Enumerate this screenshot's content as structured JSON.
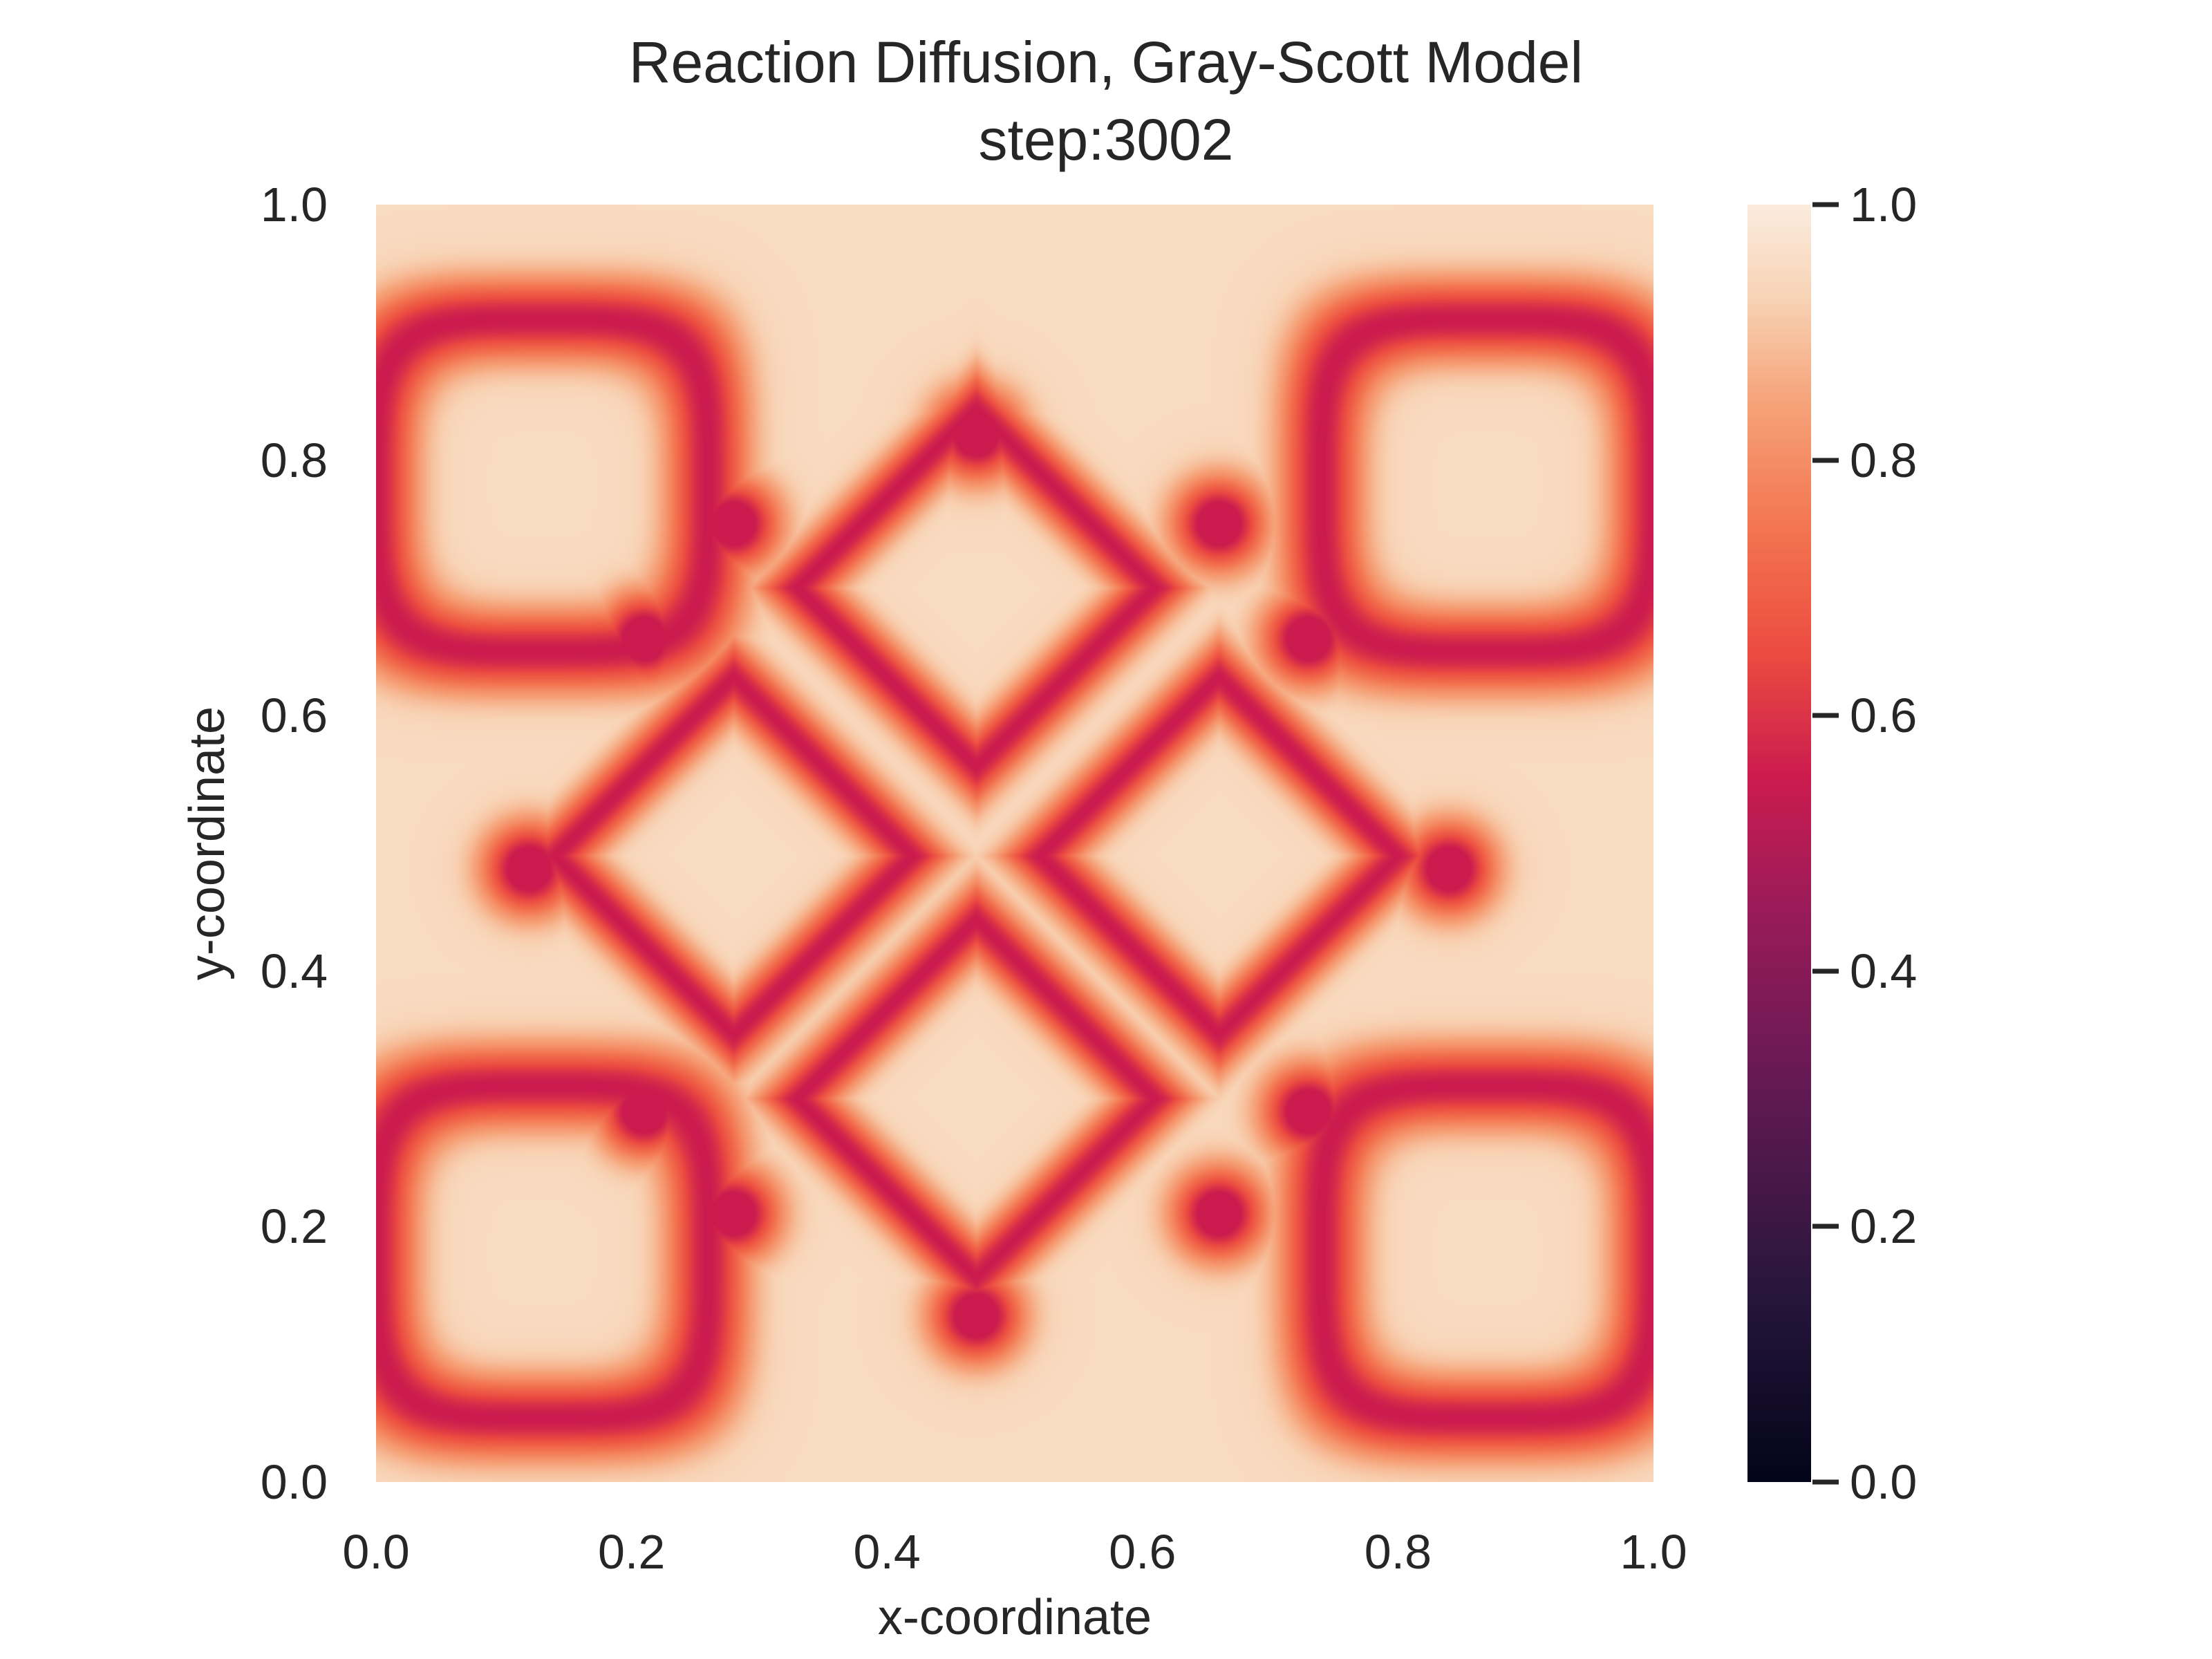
{
  "chart_data": {
    "type": "heatmap",
    "title": "Reaction Diffusion, Gray-Scott Model",
    "subtitle": "step:3002",
    "xlabel": "x-coordinate",
    "ylabel": "y-coordinate",
    "xlim": [
      0.0,
      1.0
    ],
    "ylim": [
      0.0,
      1.0
    ],
    "x_ticks": [
      "0.0",
      "0.2",
      "0.4",
      "0.6",
      "0.8",
      "1.0"
    ],
    "y_ticks": [
      "0.0",
      "0.2",
      "0.4",
      "0.6",
      "0.8",
      "1.0"
    ],
    "grid": false,
    "colorbar": {
      "range": [
        0.0,
        1.0
      ],
      "ticks": [
        "0.0",
        "0.2",
        "0.4",
        "0.6",
        "0.8",
        "1.0"
      ],
      "colormap": "rocket"
    },
    "field": {
      "background_value": 0.95,
      "ring_value": 0.55,
      "node_value": 0.5,
      "diamond_rings": [
        {
          "x": 0.47,
          "y": 0.7,
          "r": 0.14
        },
        {
          "x": 0.47,
          "y": 0.3,
          "r": 0.14
        },
        {
          "x": 0.28,
          "y": 0.49,
          "r": 0.14
        },
        {
          "x": 0.66,
          "y": 0.49,
          "r": 0.14
        }
      ],
      "nodes": [
        {
          "x": 0.47,
          "y": 0.82
        },
        {
          "x": 0.47,
          "y": 0.13
        },
        {
          "x": 0.12,
          "y": 0.48
        },
        {
          "x": 0.84,
          "y": 0.48
        },
        {
          "x": 0.28,
          "y": 0.75
        },
        {
          "x": 0.66,
          "y": 0.75
        },
        {
          "x": 0.28,
          "y": 0.21
        },
        {
          "x": 0.66,
          "y": 0.21
        },
        {
          "x": 0.21,
          "y": 0.66
        },
        {
          "x": 0.73,
          "y": 0.66
        },
        {
          "x": 0.21,
          "y": 0.29
        },
        {
          "x": 0.73,
          "y": 0.29
        }
      ],
      "corner_loops": [
        {
          "x": 0.13,
          "y": 0.78,
          "r": 0.13
        },
        {
          "x": 0.87,
          "y": 0.78,
          "r": 0.13
        },
        {
          "x": 0.13,
          "y": 0.18,
          "r": 0.13
        },
        {
          "x": 0.87,
          "y": 0.18,
          "r": 0.13
        }
      ]
    }
  }
}
